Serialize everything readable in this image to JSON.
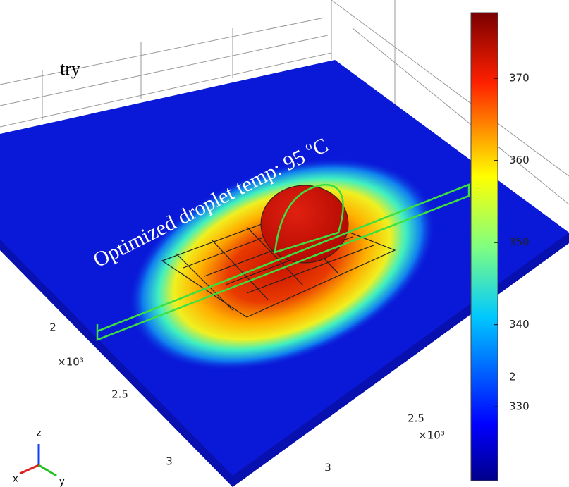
{
  "caption_fragment": "try",
  "annotation": {
    "text": "Optimized droplet temp: 95 ",
    "sup": "o",
    "unit": "C"
  },
  "axes": {
    "y_ticks": [
      "2",
      "2.5",
      "3"
    ],
    "y_multiplier": "×10³",
    "x_ticks": [
      "2.5",
      "3"
    ],
    "x_multiplier": "×10³",
    "z_tick": "2"
  },
  "triad": {
    "z": "z",
    "x": "x",
    "y": "y"
  },
  "colorbar": {
    "range": [
      321,
      378
    ],
    "ticks": [
      330,
      340,
      350,
      360,
      370
    ]
  }
}
